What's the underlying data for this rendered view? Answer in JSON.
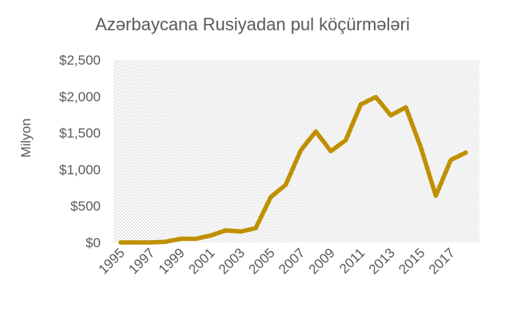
{
  "chart_data": {
    "type": "line",
    "title": "Azərbaycana Rusiyadan pul köçürmələri",
    "xlabel": "",
    "ylabel": "Milyon",
    "x": [
      1995,
      1996,
      1997,
      1998,
      1999,
      2000,
      2001,
      2002,
      2003,
      2004,
      2005,
      2006,
      2007,
      2008,
      2009,
      2010,
      2011,
      2012,
      2013,
      2014,
      2015,
      2016,
      2017,
      2018
    ],
    "x_tick_labels": [
      "1995",
      "1997",
      "1999",
      "2001",
      "2003",
      "2005",
      "2007",
      "2009",
      "2011",
      "2013",
      "2015",
      "2017"
    ],
    "y_tick_labels": [
      "$0",
      "$500",
      "$1,000",
      "$1,500",
      "$2,000",
      "$2,500"
    ],
    "y_ticks": [
      0,
      500,
      1000,
      1500,
      2000,
      2500
    ],
    "ylim": [
      0,
      2500
    ],
    "grid": false,
    "legend": "none",
    "series": [
      {
        "values": [
          0,
          0,
          0,
          10,
          50,
          50,
          95,
          165,
          150,
          195,
          620,
          790,
          1260,
          1520,
          1250,
          1400,
          1890,
          1990,
          1740,
          1850,
          1300,
          640,
          1130,
          1230
        ],
        "color": "#bf9000"
      }
    ],
    "plot_background": "dotted-gray"
  }
}
